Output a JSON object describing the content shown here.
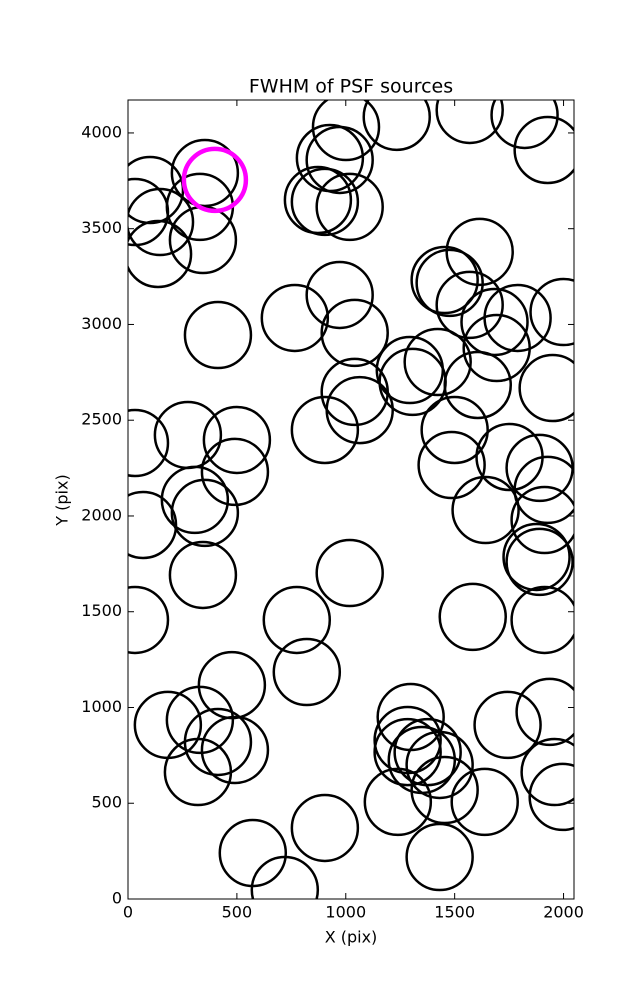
{
  "chart_data": {
    "type": "scatter",
    "title": "FWHM of PSF sources",
    "x_label": "X (pix)",
    "y_label": "Y (pix)",
    "xlim": [
      0,
      2048
    ],
    "ylim": [
      0,
      4172
    ],
    "xticks": [
      0,
      500,
      1000,
      1500,
      2000
    ],
    "yticks": [
      0,
      500,
      1000,
      1500,
      2000,
      2500,
      3000,
      3500,
      4000
    ],
    "series": [
      {
        "color": "#000000",
        "x": [
          101,
          147,
          138,
          32,
          353,
          330,
          344,
          1001,
          927,
          972,
          872,
          904,
          1018,
          1234,
          1569,
          1821,
          1927,
          413,
          766,
          972,
          1041,
          1454,
          1477,
          1615,
          1569,
          1683,
          1789,
          1693,
          2000,
          1950,
          1422,
          1307,
          1294,
          1606,
          1500,
          1486,
          1041,
          1064,
          904,
          275,
          500,
          491,
          32,
          69,
          307,
          353,
          344,
          32,
          775,
          1018,
          821,
          477,
          183,
          330,
          413,
          491,
          321,
          573,
          720,
          904,
          1298,
          1284,
          1284,
          1239,
          1376,
          1349,
          1431,
          1454,
          1431,
          1638,
          1583,
          1743,
          1936,
          1959,
          1996,
          1913,
          1876,
          1890,
          1913,
          1890,
          1927,
          1752,
          1642
        ],
        "y": [
          3702,
          3535,
          3368,
          3587,
          3791,
          3614,
          3441,
          4031,
          3869,
          3859,
          3650,
          3640,
          3614,
          4084,
          4120,
          4094,
          3911,
          2945,
          3034,
          3154,
          2956,
          3232,
          3217,
          3379,
          3102,
          3013,
          3034,
          2877,
          3065,
          2668,
          2804,
          2700,
          2762,
          2684,
          2449,
          2266,
          2648,
          2553,
          2449,
          2423,
          2397,
          2230,
          2381,
          1953,
          2084,
          2016,
          1692,
          1457,
          1457,
          1702,
          1185,
          1117,
          909,
          935,
          820,
          778,
          663,
          240,
          47,
          371,
          950,
          830,
          767,
          507,
          767,
          726,
          700,
          569,
          219,
          507,
          1473,
          909,
          977,
          663,
          533,
          1457,
          1786,
          1760,
          1979,
          2251,
          2136,
          2308,
          2031
        ]
      },
      {
        "color": "#ff00ff",
        "x": [
          399
        ],
        "y": [
          3755
        ]
      }
    ]
  }
}
